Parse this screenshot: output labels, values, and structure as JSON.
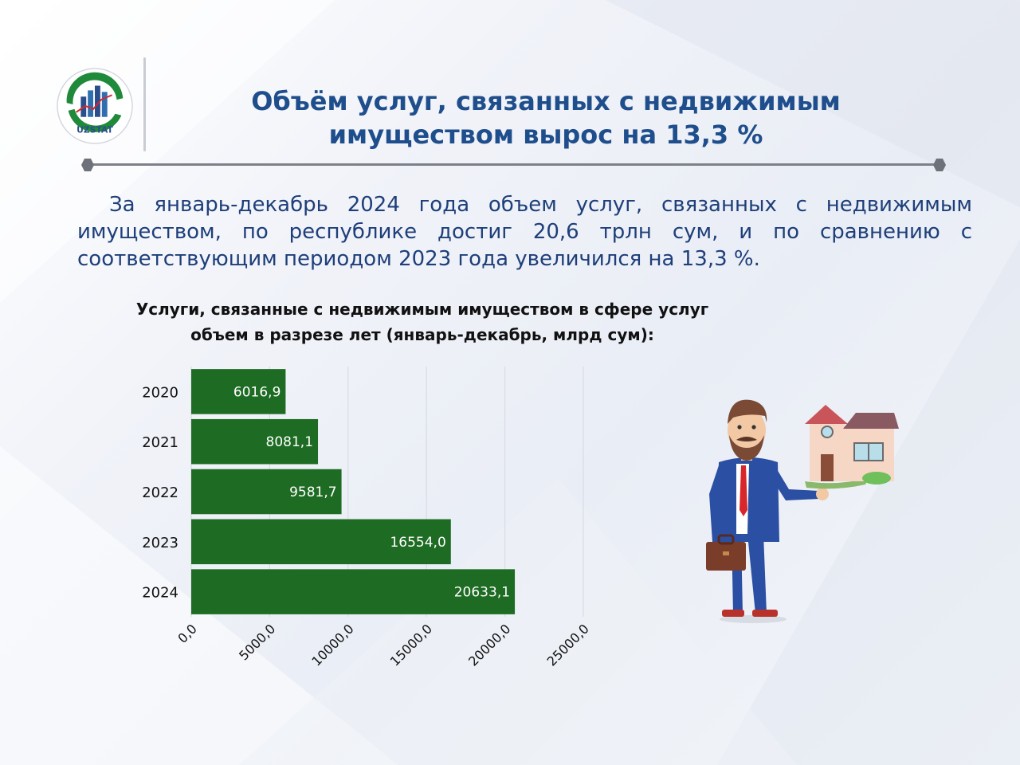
{
  "header": {
    "logo_text": "UZSTAT",
    "title_line1": "Объём услуг, связанных с недвижимым",
    "title_line2": "имуществом вырос на 13,3 %"
  },
  "body": {
    "paragraph": "За январь-декабрь 2024 года объем услуг, связанных с недвижимым имуществом, по республике достиг 20,6 трлн сум, и по сравнению с соответствующим периодом 2023 года увеличился на 13,3 %."
  },
  "colors": {
    "accent": "#1f4e8c",
    "bar": "#1e6b23",
    "text": "#1e3f7a"
  },
  "chart_data": {
    "type": "bar",
    "orientation": "horizontal",
    "title_line1": "Услуги, связанные с недвижимым имуществом в сфере услуг",
    "title_line2": "объем в разрезе лет (январь-декабрь, млрд сум):",
    "categories": [
      "2020",
      "2021",
      "2022",
      "2023",
      "2024"
    ],
    "values": [
      6016.9,
      8081.1,
      9581.7,
      16554.0,
      20633.1
    ],
    "value_labels": [
      "6016,9",
      "8081,1",
      "9581,7",
      "16554,0",
      "20633,1"
    ],
    "x_ticks": [
      0,
      5000,
      10000,
      15000,
      20000,
      25000
    ],
    "x_tick_labels": [
      "0,0",
      "5000,0",
      "10000,0",
      "15000,0",
      "20000,0",
      "25000,0"
    ],
    "xlim": [
      0,
      25000
    ],
    "grid": true,
    "legend": "none"
  }
}
